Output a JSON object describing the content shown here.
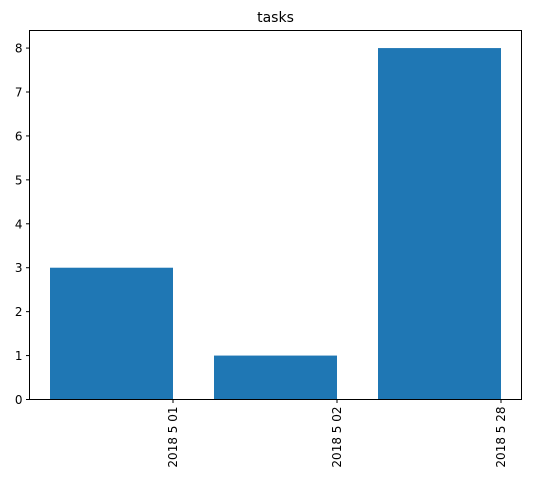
{
  "chart_data": {
    "type": "bar",
    "title": "tasks",
    "xlabel": "",
    "ylabel": "",
    "categories": [
      "2018 5 01",
      "2018 5 02",
      "2018 5 28"
    ],
    "values": [
      3,
      1,
      8
    ],
    "ylim": [
      0,
      8.4
    ],
    "yticks": [
      0,
      1,
      2,
      3,
      4,
      5,
      6,
      7,
      8
    ],
    "grid": false,
    "bar_color": "#1f77b4",
    "x_tick_rotation": 90,
    "x_tick_align": "right-edge-of-bar"
  }
}
